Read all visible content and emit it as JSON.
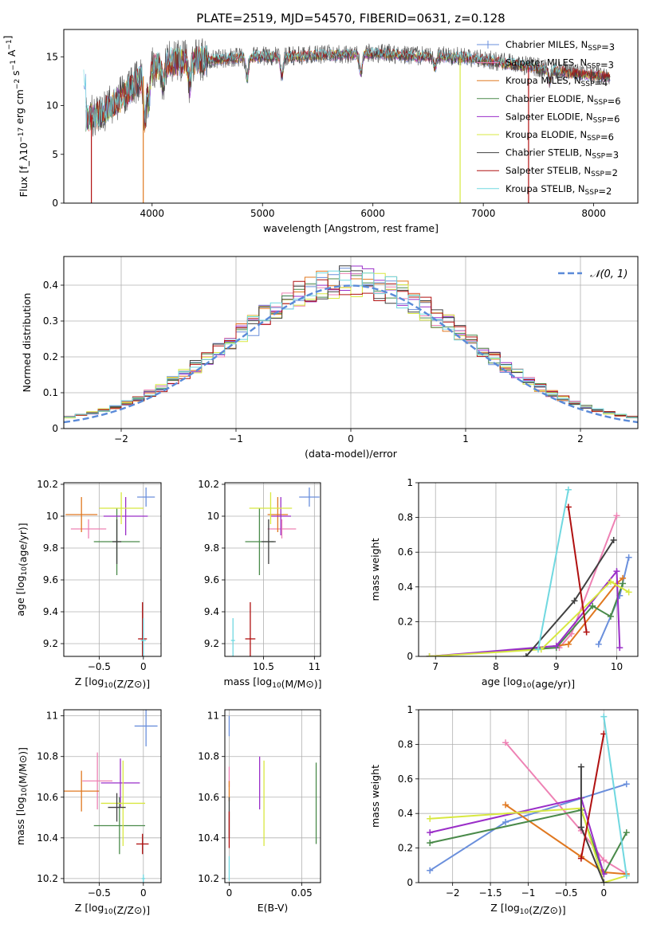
{
  "figure": {
    "title": "PLATE=2519, MJD=54570, FIBERID=0631, z=0.128"
  },
  "chart_data": [
    {
      "id": "spectrum",
      "type": "line",
      "title": "PLATE=2519, MJD=54570, FIBERID=0631, z=0.128",
      "xlabel": "wavelength [Angstrom, rest frame]",
      "ylabel": "Flux [f_λ10^−17 erg cm^−2 s^−1 A^−1]",
      "xlim": [
        3200,
        8400
      ],
      "ylim": [
        0,
        17.8
      ],
      "xticks": [
        4000,
        5000,
        6000,
        7000,
        8000
      ],
      "yticks": [
        0,
        5,
        10,
        15
      ],
      "legend_position": "top-right",
      "legend_labels": [
        "Chabrier MILES, N_SSP=3",
        "Salpeter MILES, N_SSP=3",
        "Kroupa MILES, N_SSP=4",
        "Chabrier ELODIE, N_SSP=6",
        "Salpeter ELODIE, N_SSP=6",
        "Kroupa ELODIE, N_SSP=6",
        "Chabrier STELIB, N_SSP=3",
        "Salpeter STELIB, N_SSP=2",
        "Kroupa STELIB, N_SSP=2"
      ],
      "legend_colors": [
        "#6a8fdc",
        "#ee82b4",
        "#e07820",
        "#4a8a4a",
        "#9a2ec8",
        "#d8e840",
        "#404040",
        "#b01010",
        "#70d8e0"
      ],
      "continuum": [
        [
          3400,
          8.6
        ],
        [
          3500,
          9.0
        ],
        [
          3600,
          9.6
        ],
        [
          3700,
          10.6
        ],
        [
          3800,
          11.6
        ],
        [
          3900,
          12.8
        ],
        [
          4000,
          13.8
        ],
        [
          4200,
          14.5
        ],
        [
          4400,
          14.6
        ],
        [
          4600,
          14.7
        ],
        [
          4800,
          14.9
        ],
        [
          5000,
          15.0
        ],
        [
          5200,
          15.0
        ],
        [
          5400,
          15.1
        ],
        [
          5600,
          15.2
        ],
        [
          5800,
          15.2
        ],
        [
          6000,
          15.3
        ],
        [
          6200,
          15.2
        ],
        [
          6400,
          15.0
        ],
        [
          6600,
          15.0
        ],
        [
          6800,
          14.9
        ],
        [
          7000,
          14.7
        ],
        [
          7200,
          14.3
        ],
        [
          7400,
          14.0
        ],
        [
          7600,
          13.6
        ],
        [
          7800,
          13.3
        ],
        [
          8000,
          13.1
        ],
        [
          8150,
          12.9
        ]
      ],
      "dips": [
        [
          3935,
          4.6
        ],
        [
          3970,
          3.2
        ],
        [
          4100,
          2.0
        ],
        [
          4340,
          2.5
        ],
        [
          4861,
          2.2
        ],
        [
          5175,
          2.0
        ],
        [
          5890,
          2.0
        ],
        [
          6563,
          1.2
        ],
        [
          7600,
          1.2
        ]
      ],
      "drop_edges": [
        {
          "x": 3450,
          "series": "Salpeter STELIB, N_SSP=2"
        },
        {
          "x": 3920,
          "series": "Kroupa MILES, N_SSP=4"
        },
        {
          "x": 6790,
          "series": "Kroupa ELODIE, N_SSP=6"
        },
        {
          "x": 7410,
          "series": "Salpeter STELIB, N_SSP=2"
        }
      ]
    },
    {
      "id": "residuals",
      "type": "line",
      "xlabel": "(data-model)/error",
      "ylabel": "Normed distribution",
      "xlim": [
        -2.5,
        2.5
      ],
      "ylim": [
        0,
        0.48
      ],
      "xticks": [
        -2,
        -1,
        0,
        1,
        2
      ],
      "yticks": [
        0.0,
        0.1,
        0.2,
        0.3,
        0.4
      ],
      "grid": true,
      "legend_position": "top-right",
      "legend_label": "𝒩(0, 1)",
      "gaussian_color": "#5a8ad8",
      "bin_width": 0.1,
      "hist_colors": [
        "#6a8fdc",
        "#ee82b4",
        "#e07820",
        "#4a8a4a",
        "#9a2ec8",
        "#d8e840",
        "#404040",
        "#b01010",
        "#70d8e0"
      ]
    },
    {
      "id": "age-vs-metallicity",
      "type": "scatter",
      "xlabel": "Z [log10(Z/Z⊙)]",
      "ylabel": "age  [log10(age/yr)]",
      "xlim": [
        -0.9,
        0.2
      ],
      "ylim": [
        9.12,
        10.21
      ],
      "xticks": [
        -0.5,
        0.0
      ],
      "yticks": [
        9.2,
        9.4,
        9.6,
        9.8,
        10.0,
        10.2
      ],
      "grid": true,
      "points": [
        {
          "x": 0.03,
          "y": 10.12,
          "xerr": 0.1,
          "yerr": 0.06,
          "color": "#6a8fdc"
        },
        {
          "x": -0.62,
          "y": 9.92,
          "xerr": 0.2,
          "yerr": 0.06,
          "color": "#ee82b4"
        },
        {
          "x": -0.7,
          "y": 10.01,
          "xerr": 0.18,
          "yerr": 0.11,
          "color": "#e07820"
        },
        {
          "x": -0.3,
          "y": 9.84,
          "xerr": 0.26,
          "yerr": 0.21,
          "color": "#4a8a4a"
        },
        {
          "x": -0.2,
          "y": 10.0,
          "xerr": 0.25,
          "yerr": 0.12,
          "color": "#9a2ec8"
        },
        {
          "x": -0.25,
          "y": 10.05,
          "xerr": 0.25,
          "yerr": 0.1,
          "color": "#d8e840"
        },
        {
          "x": -0.3,
          "y": 9.84,
          "xerr": 0.05,
          "yerr": 0.14,
          "color": "#404040"
        },
        {
          "x": -0.01,
          "y": 9.23,
          "xerr": 0.05,
          "yerr": 0.23,
          "color": "#b01010"
        },
        {
          "x": 0.0,
          "y": 9.22,
          "xerr": 0.03,
          "yerr": 0.14,
          "color": "#70d8e0"
        }
      ]
    },
    {
      "id": "age-vs-mass",
      "type": "scatter",
      "xlabel": "mass [log10(M/M⊙)]",
      "ylabel": "",
      "xlim": [
        10.12,
        11.06
      ],
      "ylim": [
        9.12,
        10.21
      ],
      "xticks": [
        10.5,
        11.0
      ],
      "yticks": [
        9.2,
        9.4,
        9.6,
        9.8,
        10.0,
        10.2
      ],
      "grid": true,
      "points": [
        {
          "x": 10.95,
          "y": 10.12,
          "xerr": 0.1,
          "yerr": 0.06,
          "color": "#6a8fdc"
        },
        {
          "x": 10.68,
          "y": 9.92,
          "xerr": 0.14,
          "yerr": 0.06,
          "color": "#ee82b4"
        },
        {
          "x": 10.64,
          "y": 10.01,
          "xerr": 0.1,
          "yerr": 0.11,
          "color": "#e07820"
        },
        {
          "x": 10.46,
          "y": 9.84,
          "xerr": 0.14,
          "yerr": 0.21,
          "color": "#4a8a4a"
        },
        {
          "x": 10.67,
          "y": 10.0,
          "xerr": 0.1,
          "yerr": 0.12,
          "color": "#9a2ec8"
        },
        {
          "x": 10.57,
          "y": 10.05,
          "xerr": 0.21,
          "yerr": 0.1,
          "color": "#d8e840"
        },
        {
          "x": 10.55,
          "y": 9.84,
          "xerr": 0.07,
          "yerr": 0.14,
          "color": "#404040"
        },
        {
          "x": 10.37,
          "y": 9.23,
          "xerr": 0.05,
          "yerr": 0.23,
          "color": "#b01010"
        },
        {
          "x": 10.2,
          "y": 9.22,
          "xerr": 0.02,
          "yerr": 0.14,
          "color": "#70d8e0"
        }
      ]
    },
    {
      "id": "weight-vs-age",
      "type": "line",
      "xlabel": "age  [log10(age/yr)]",
      "ylabel": "mass weight",
      "xlim": [
        6.72,
        10.35
      ],
      "ylim": [
        0.0,
        1.0
      ],
      "xticks": [
        7,
        8,
        9,
        10
      ],
      "yticks": [
        0.0,
        0.2,
        0.4,
        0.6,
        0.8,
        1.0
      ],
      "grid": true,
      "series": [
        {
          "color": "#6a8fdc",
          "points": [
            [
              9.7,
              0.07
            ],
            [
              10.05,
              0.35
            ],
            [
              10.2,
              0.57
            ]
          ]
        },
        {
          "color": "#ee82b4",
          "points": [
            [
              9.05,
              0.05
            ],
            [
              9.25,
              0.13
            ],
            [
              10.0,
              0.81
            ]
          ]
        },
        {
          "color": "#e07820",
          "points": [
            [
              9.0,
              0.06
            ],
            [
              9.2,
              0.07
            ],
            [
              10.0,
              0.42
            ],
            [
              10.1,
              0.45
            ]
          ]
        },
        {
          "color": "#4a8a4a",
          "points": [
            [
              6.9,
              0.0
            ],
            [
              9.0,
              0.05
            ],
            [
              9.6,
              0.29
            ],
            [
              9.9,
              0.23
            ],
            [
              10.1,
              0.42
            ]
          ]
        },
        {
          "color": "#9a2ec8",
          "points": [
            [
              6.9,
              0.0
            ],
            [
              9.0,
              0.06
            ],
            [
              10.0,
              0.49
            ],
            [
              10.05,
              0.05
            ]
          ]
        },
        {
          "color": "#d8e840",
          "points": [
            [
              6.9,
              0.0
            ],
            [
              8.75,
              0.04
            ],
            [
              9.9,
              0.43
            ],
            [
              10.2,
              0.37
            ]
          ]
        },
        {
          "color": "#404040",
          "points": [
            [
              8.5,
              0.0
            ],
            [
              9.3,
              0.32
            ],
            [
              9.95,
              0.67
            ]
          ]
        },
        {
          "color": "#b01010",
          "points": [
            [
              9.2,
              0.86
            ],
            [
              9.5,
              0.14
            ]
          ]
        },
        {
          "color": "#70d8e0",
          "points": [
            [
              8.7,
              0.04
            ],
            [
              9.2,
              0.96
            ]
          ]
        }
      ]
    },
    {
      "id": "mass-vs-metallicity",
      "type": "scatter",
      "xlabel": "Z [log10(Z/Z⊙)]",
      "ylabel": "mass [log10(M/M⊙)]",
      "xlim": [
        -0.9,
        0.2
      ],
      "ylim": [
        10.18,
        11.03
      ],
      "xticks": [
        -0.5,
        0.0
      ],
      "yticks": [
        10.2,
        10.4,
        10.6,
        10.8,
        11.0
      ],
      "grid": true,
      "points": [
        {
          "x": 0.03,
          "y": 10.95,
          "xerr": 0.13,
          "yerr": 0.1,
          "color": "#6a8fdc"
        },
        {
          "x": -0.52,
          "y": 10.68,
          "xerr": 0.17,
          "yerr": 0.14,
          "color": "#ee82b4"
        },
        {
          "x": -0.7,
          "y": 10.63,
          "xerr": 0.2,
          "yerr": 0.1,
          "color": "#e07820"
        },
        {
          "x": -0.27,
          "y": 10.46,
          "xerr": 0.29,
          "yerr": 0.14,
          "color": "#4a8a4a"
        },
        {
          "x": -0.26,
          "y": 10.67,
          "xerr": 0.22,
          "yerr": 0.12,
          "color": "#9a2ec8"
        },
        {
          "x": -0.23,
          "y": 10.57,
          "xerr": 0.25,
          "yerr": 0.21,
          "color": "#d8e840"
        },
        {
          "x": -0.3,
          "y": 10.55,
          "xerr": 0.1,
          "yerr": 0.07,
          "color": "#404040"
        },
        {
          "x": -0.01,
          "y": 10.37,
          "xerr": 0.07,
          "yerr": 0.05,
          "color": "#b01010"
        },
        {
          "x": 0.0,
          "y": 10.2,
          "xerr": 0.02,
          "yerr": 0.02,
          "color": "#70d8e0"
        }
      ]
    },
    {
      "id": "mass-vs-ebv",
      "type": "scatter",
      "xlabel": "E(B-V)",
      "ylabel": "",
      "xlim": [
        -0.003,
        0.063
      ],
      "ylim": [
        10.18,
        11.03
      ],
      "xticks": [
        0.0,
        0.05
      ],
      "yticks": [
        10.2,
        10.4,
        10.6,
        10.8,
        11.0
      ],
      "grid": true,
      "points": [
        {
          "x": 0.0,
          "y": 10.95,
          "xerr": 0,
          "yerr": 0.05,
          "color": "#6a8fdc"
        },
        {
          "x": 0.0,
          "y": 10.7,
          "xerr": 0,
          "yerr": 0.05,
          "color": "#ee82b4"
        },
        {
          "x": 0.0,
          "y": 10.63,
          "xerr": 0,
          "yerr": 0.05,
          "color": "#e07820"
        },
        {
          "x": 0.06,
          "y": 10.57,
          "xerr": 0,
          "yerr": 0.2,
          "color": "#4a8a4a"
        },
        {
          "x": 0.021,
          "y": 10.67,
          "xerr": 0,
          "yerr": 0.13,
          "color": "#9a2ec8"
        },
        {
          "x": 0.024,
          "y": 10.57,
          "xerr": 0,
          "yerr": 0.21,
          "color": "#d8e840"
        },
        {
          "x": 0.0,
          "y": 10.5,
          "xerr": 0,
          "yerr": 0.1,
          "color": "#404040"
        },
        {
          "x": 0.0,
          "y": 10.44,
          "xerr": 0,
          "yerr": 0.09,
          "color": "#b01010"
        },
        {
          "x": 0.0,
          "y": 10.25,
          "xerr": 0,
          "yerr": 0.06,
          "color": "#70d8e0"
        }
      ]
    },
    {
      "id": "weight-vs-metallicity",
      "type": "line",
      "xlabel": "Z [log10(Z/Z⊙)]",
      "ylabel": "mass weight",
      "xlim": [
        -2.45,
        0.45
      ],
      "ylim": [
        0.0,
        1.0
      ],
      "xticks": [
        -2.0,
        -1.5,
        -1.0,
        -0.5,
        0.0
      ],
      "yticks": [
        0.0,
        0.2,
        0.4,
        0.6,
        0.8,
        1.0
      ],
      "grid": true,
      "series": [
        {
          "color": "#6a8fdc",
          "points": [
            [
              -2.3,
              0.07
            ],
            [
              -1.3,
              0.35
            ],
            [
              0.3,
              0.57
            ]
          ]
        },
        {
          "color": "#ee82b4",
          "points": [
            [
              -1.3,
              0.81
            ],
            [
              -0.3,
              0.3
            ],
            [
              0.0,
              0.13
            ],
            [
              0.3,
              0.05
            ]
          ]
        },
        {
          "color": "#e07820",
          "points": [
            [
              -1.3,
              0.45
            ],
            [
              -0.3,
              0.15
            ],
            [
              0.0,
              0.06
            ],
            [
              0.3,
              0.05
            ]
          ]
        },
        {
          "color": "#4a8a4a",
          "points": [
            [
              -2.3,
              0.23
            ],
            [
              -0.3,
              0.42
            ],
            [
              0.0,
              0.05
            ],
            [
              0.3,
              0.29
            ]
          ]
        },
        {
          "color": "#9a2ec8",
          "points": [
            [
              -2.3,
              0.29
            ],
            [
              -0.3,
              0.49
            ],
            [
              0.0,
              0.05
            ]
          ]
        },
        {
          "color": "#d8e840",
          "points": [
            [
              -2.3,
              0.37
            ],
            [
              -0.3,
              0.43
            ],
            [
              0.0,
              0.0
            ],
            [
              0.3,
              0.04
            ]
          ]
        },
        {
          "color": "#404040",
          "points": [
            [
              -0.3,
              0.67
            ],
            [
              -0.3,
              0.32
            ],
            [
              0.0,
              0.0
            ]
          ]
        },
        {
          "color": "#b01010",
          "points": [
            [
              -0.3,
              0.14
            ],
            [
              0.0,
              0.86
            ]
          ]
        },
        {
          "color": "#70d8e0",
          "points": [
            [
              0.0,
              0.96
            ],
            [
              0.3,
              0.04
            ]
          ]
        }
      ]
    }
  ]
}
